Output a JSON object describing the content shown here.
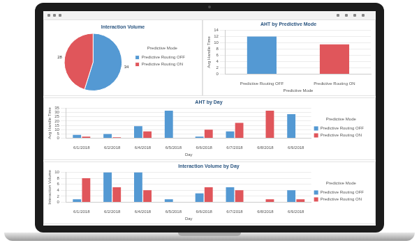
{
  "chart_data": [
    {
      "type": "pie",
      "title": "Interaction Volume",
      "categories": [
        "Predictive Routing OFF",
        "Predictive Routing ON"
      ],
      "values": [
        34,
        28
      ],
      "colors": [
        "#5499d3",
        "#e0565b"
      ],
      "data_labels": true,
      "legend": "right",
      "legend_title": "Predictive Mode"
    },
    {
      "type": "bar",
      "title": "AHT by Predictive Mode",
      "x_label": "Predictive Mode",
      "y_label": "Avg Handle Time",
      "categories": [
        "Predictive Routing OFF",
        "Predictive Routing ON"
      ],
      "values": [
        12,
        9.5
      ],
      "colors": [
        "#5499d3",
        "#e0565b"
      ],
      "ylim": [
        0,
        14
      ],
      "yticks": [
        0,
        2,
        4,
        6,
        8,
        10,
        12,
        14
      ],
      "grid": true
    },
    {
      "type": "bar",
      "title": "AHT by Day",
      "x_label": "Day",
      "y_label": "Avg Handle Time",
      "categories": [
        "6/1/2018",
        "6/2/2018",
        "6/4/2018",
        "6/5/2018",
        "6/6/2018",
        "6/7/2018",
        "6/8/2018",
        "6/9/2018"
      ],
      "series": [
        {
          "name": "Predictive Routing OFF",
          "color": "#5499d3",
          "values": [
            4,
            5,
            14,
            32,
            2,
            8,
            null,
            28
          ]
        },
        {
          "name": "Predictive Routing ON",
          "color": "#e0565b",
          "values": [
            2,
            1,
            8,
            null,
            10,
            18,
            32,
            null
          ]
        }
      ],
      "ylim": [
        0,
        35
      ],
      "yticks": [
        0,
        5,
        10,
        15,
        20,
        25,
        30,
        35
      ],
      "grid": true,
      "legend": "right",
      "legend_title": "Predictive Mode"
    },
    {
      "type": "bar",
      "title": "Interaction Volume by Day",
      "x_label": "Day",
      "y_label": "Interaction Volume",
      "categories": [
        "6/1/2018",
        "6/2/2018",
        "6/4/2018",
        "6/5/2018",
        "6/6/2018",
        "6/7/2018",
        "6/8/2018",
        "6/9/2018"
      ],
      "series": [
        {
          "name": "Predictive Routing OFF",
          "color": "#5499d3",
          "values": [
            1,
            10,
            10,
            1,
            3,
            5,
            null,
            4
          ]
        },
        {
          "name": "Predictive Routing ON",
          "color": "#e0565b",
          "values": [
            8,
            5,
            4,
            null,
            5,
            4,
            1,
            1
          ]
        }
      ],
      "ylim": [
        0,
        10
      ],
      "yticks": [
        0,
        2,
        4,
        6,
        8,
        10
      ],
      "grid": true,
      "legend": "right",
      "legend_title": "Predictive Mode"
    }
  ]
}
